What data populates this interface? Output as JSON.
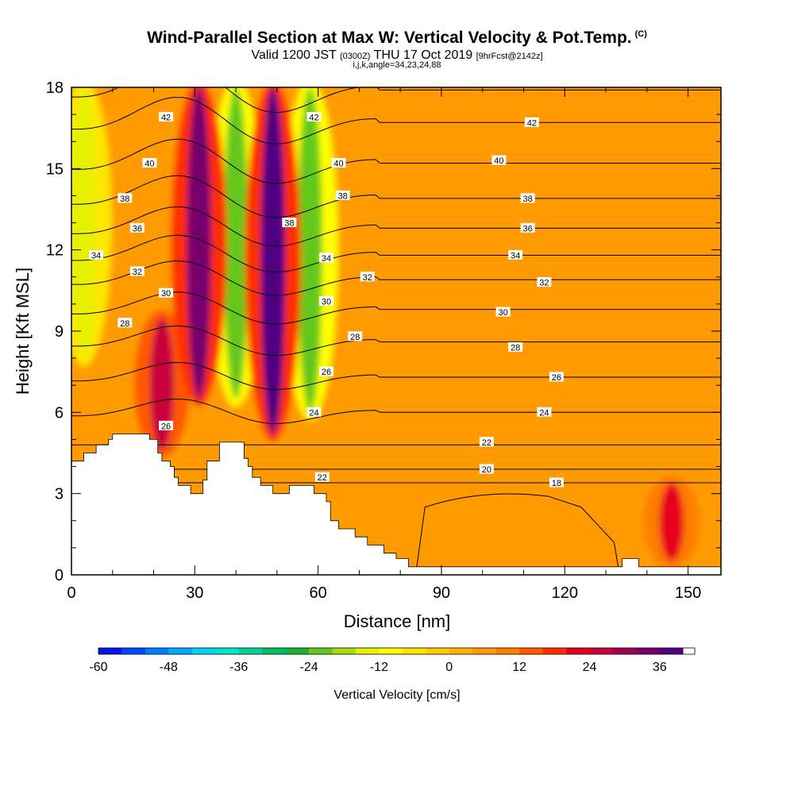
{
  "header": {
    "title": "Wind-Parallel Section at Max W: Vertical Velocity & Pot.Temp.",
    "title_mark": "(C)",
    "valid_prefix": "Valid 1200 JST",
    "valid_utc": "(0300Z)",
    "valid_date": "THU 17 Oct 2019",
    "forecast": "[9hrFcst@2142z]",
    "params": "i,j,k,angle=34,23,24,88"
  },
  "chart_data": {
    "type": "heatmap",
    "xlabel": "Distance [nm]",
    "ylabel": "Height [Kft MSL]",
    "xlim": [
      0,
      158
    ],
    "ylim": [
      0,
      18
    ],
    "xticks": [
      0,
      30,
      60,
      90,
      120,
      150
    ],
    "yticks": [
      0,
      3,
      6,
      9,
      12,
      15,
      18
    ],
    "colorbar": {
      "label": "Vertical Velocity [cm/s]",
      "min": -60,
      "max": 42,
      "step": 4,
      "tick_values": [
        -60,
        -48,
        -36,
        -24,
        -12,
        0,
        12,
        24,
        36
      ],
      "colors": [
        "#0a14f0",
        "#0046ff",
        "#007dff",
        "#00aaff",
        "#00d2f0",
        "#00e6c8",
        "#00d296",
        "#00be64",
        "#19b432",
        "#64c81e",
        "#aadc14",
        "#e6f000",
        "#ffff00",
        "#ffe600",
        "#ffcd00",
        "#ffb400",
        "#ff9b00",
        "#ff7d00",
        "#ff5a00",
        "#ff2d00",
        "#e6001e",
        "#c8003c",
        "#a00050",
        "#78006e",
        "#500082"
      ]
    },
    "wmax_features": [
      {
        "x": 22,
        "z_bottom": 4.6,
        "z_top": 9.5,
        "w": 26
      },
      {
        "x": 31,
        "z_bottom": 6.5,
        "z_top": 18,
        "w": 34
      },
      {
        "x": 49,
        "z_bottom": 5.2,
        "z_top": 18,
        "w": 38
      },
      {
        "x": 146,
        "z_bottom": 0.5,
        "z_top": 3.4,
        "w": 22
      }
    ],
    "wmin_features": [
      {
        "x": 40,
        "z_bottom": 6.5,
        "z_top": 18,
        "w": -22
      },
      {
        "x": 58,
        "z_bottom": 6.0,
        "z_top": 18,
        "w": -24
      },
      {
        "x": 3,
        "z_bottom": 8,
        "z_top": 18,
        "w": -16
      }
    ],
    "contour_labels": [
      {
        "text": "42",
        "x": 23,
        "z": 16.9
      },
      {
        "text": "42",
        "x": 59,
        "z": 16.9
      },
      {
        "text": "42",
        "x": 112,
        "z": 16.7
      },
      {
        "text": "40",
        "x": 19,
        "z": 15.2
      },
      {
        "text": "40",
        "x": 65,
        "z": 15.2
      },
      {
        "text": "40",
        "x": 104,
        "z": 15.3
      },
      {
        "text": "38",
        "x": 13,
        "z": 13.9
      },
      {
        "text": "38",
        "x": 53,
        "z": 13.0
      },
      {
        "text": "38",
        "x": 66,
        "z": 14.0
      },
      {
        "text": "38",
        "x": 111,
        "z": 13.9
      },
      {
        "text": "36",
        "x": 16,
        "z": 12.8
      },
      {
        "text": "36",
        "x": 111,
        "z": 12.8
      },
      {
        "text": "34",
        "x": 6,
        "z": 11.8
      },
      {
        "text": "34",
        "x": 62,
        "z": 11.7
      },
      {
        "text": "34",
        "x": 108,
        "z": 11.8
      },
      {
        "text": "32",
        "x": 16,
        "z": 11.2
      },
      {
        "text": "32",
        "x": 72,
        "z": 11.0
      },
      {
        "text": "32",
        "x": 115,
        "z": 10.8
      },
      {
        "text": "30",
        "x": 23,
        "z": 10.4
      },
      {
        "text": "30",
        "x": 62,
        "z": 10.1
      },
      {
        "text": "30",
        "x": 105,
        "z": 9.7
      },
      {
        "text": "28",
        "x": 13,
        "z": 9.3
      },
      {
        "text": "28",
        "x": 69,
        "z": 8.8
      },
      {
        "text": "28",
        "x": 108,
        "z": 8.4
      },
      {
        "text": "26",
        "x": 62,
        "z": 7.5
      },
      {
        "text": "26",
        "x": 118,
        "z": 7.3
      },
      {
        "text": "26",
        "x": 23,
        "z": 5.5
      },
      {
        "text": "24",
        "x": 59,
        "z": 6.0
      },
      {
        "text": "24",
        "x": 115,
        "z": 6.0
      },
      {
        "text": "22",
        "x": 101,
        "z": 4.9
      },
      {
        "text": "22",
        "x": 61,
        "z": 3.6
      },
      {
        "text": "20",
        "x": 101,
        "z": 3.9
      },
      {
        "text": "18",
        "x": 118,
        "z": 3.4
      }
    ]
  }
}
